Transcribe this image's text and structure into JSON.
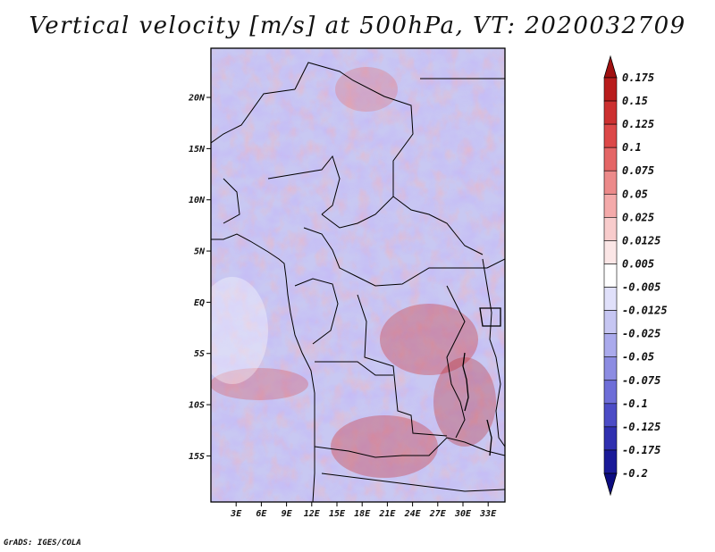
{
  "title": "Vertical velocity [m/s] at 500hPa, VT: 2020032709",
  "credit": "GrADS: IGES/COLA",
  "map": {
    "lat_labels": [
      "20N",
      "15N",
      "10N",
      "5N",
      "EQ",
      "5S",
      "10S",
      "15S"
    ],
    "lat_values": [
      20,
      15,
      10,
      5,
      0,
      -5,
      -10,
      -15
    ],
    "lon_labels": [
      "3E",
      "6E",
      "9E",
      "12E",
      "15E",
      "18E",
      "21E",
      "24E",
      "27E",
      "30E",
      "33E"
    ],
    "lon_values": [
      3,
      6,
      9,
      12,
      15,
      18,
      21,
      24,
      27,
      30,
      33
    ],
    "lon_range": [
      0,
      35
    ],
    "lat_range": [
      -19.5,
      24.8
    ]
  },
  "colorbar": {
    "labels": [
      "0.175",
      "0.15",
      "0.125",
      "0.1",
      "0.075",
      "0.05",
      "0.025",
      "0.0125",
      "0.005",
      "-0.005",
      "-0.0125",
      "-0.025",
      "-0.05",
      "-0.075",
      "-0.1",
      "-0.125",
      "-0.175",
      "-0.2"
    ],
    "colors": [
      "#a01010",
      "#b81c1c",
      "#cc3030",
      "#dc4848",
      "#e46666",
      "#ec8a8a",
      "#f4aaaa",
      "#f8cccc",
      "#fbe6e6",
      "#ffffff",
      "#e0e0fa",
      "#c6c6f2",
      "#aaaaec",
      "#8c8ce2",
      "#6e6ed8",
      "#4c4cc6",
      "#3030b0",
      "#1a1a98",
      "#0c0c80"
    ],
    "top_arrow_color": "#a01010",
    "bottom_arrow_color": "#0c0c80"
  }
}
